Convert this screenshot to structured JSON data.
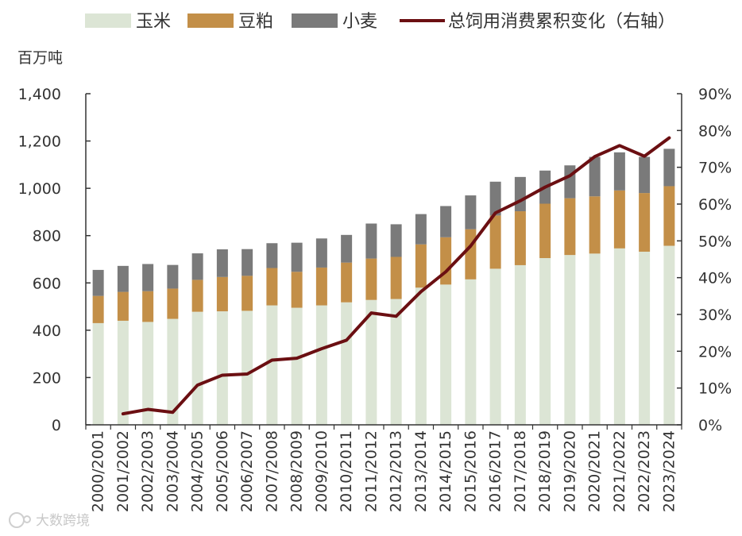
{
  "chart_data": {
    "type": "bar",
    "stacked": true,
    "categories": [
      "2000/2001",
      "2001/2002",
      "2002/2003",
      "2003/2004",
      "2004/2005",
      "2005/2006",
      "2006/2007",
      "2007/2008",
      "2008/2009",
      "2009/2010",
      "2010/2011",
      "2011/2012",
      "2012/2013",
      "2013/2014",
      "2014/2015",
      "2015/2016",
      "2016/2017",
      "2017/2018",
      "2018/2019",
      "2019/2020",
      "2020/2021",
      "2021/2022",
      "2022/2023",
      "2023/2024"
    ],
    "series": [
      {
        "name": "玉米",
        "color": "#dce5d5",
        "values": [
          430,
          440,
          435,
          448,
          478,
          480,
          482,
          505,
          495,
          505,
          518,
          528,
          532,
          580,
          593,
          615,
          660,
          675,
          705,
          718,
          724,
          746,
          732,
          757
        ]
      },
      {
        "name": "豆粕",
        "color": "#c38f48",
        "values": [
          115,
          122,
          130,
          128,
          135,
          145,
          148,
          158,
          152,
          160,
          168,
          175,
          178,
          183,
          200,
          212,
          225,
          228,
          230,
          240,
          242,
          245,
          248,
          252
        ]
      },
      {
        "name": "小麦",
        "color": "#7a7a7a",
        "values": [
          110,
          110,
          115,
          100,
          112,
          117,
          113,
          105,
          123,
          123,
          117,
          148,
          138,
          128,
          132,
          143,
          143,
          145,
          140,
          139,
          167,
          161,
          153,
          158
        ]
      }
    ],
    "line": {
      "name": "总饲用消费累积变化（右轴）",
      "color": "#6b0f12",
      "axis": "right",
      "values": [
        null,
        3.0,
        4.2,
        3.4,
        10.8,
        13.5,
        13.8,
        17.6,
        18.1,
        20.7,
        23.0,
        30.4,
        29.5,
        36.2,
        41.6,
        48.6,
        57.6,
        60.9,
        64.6,
        67.7,
        72.9,
        75.9,
        73.0,
        78.0
      ]
    },
    "yleft": {
      "label": "百万吨",
      "min": 0,
      "max": 1400,
      "ticks": [
        0,
        200,
        400,
        600,
        800,
        1000,
        1200,
        1400
      ],
      "tick_labels": [
        "0",
        "200",
        "400",
        "600",
        "800",
        "1,000",
        "1,200",
        "1,400"
      ]
    },
    "yright": {
      "min": 0,
      "max": 90,
      "ticks": [
        0,
        10,
        20,
        30,
        40,
        50,
        60,
        70,
        80,
        90
      ],
      "tick_labels": [
        "0%",
        "10%",
        "20%",
        "30%",
        "40%",
        "50%",
        "60%",
        "70%",
        "80%",
        "90%"
      ]
    },
    "legend_position": "top",
    "grid": false
  },
  "watermark": {
    "text": "大数跨境"
  }
}
